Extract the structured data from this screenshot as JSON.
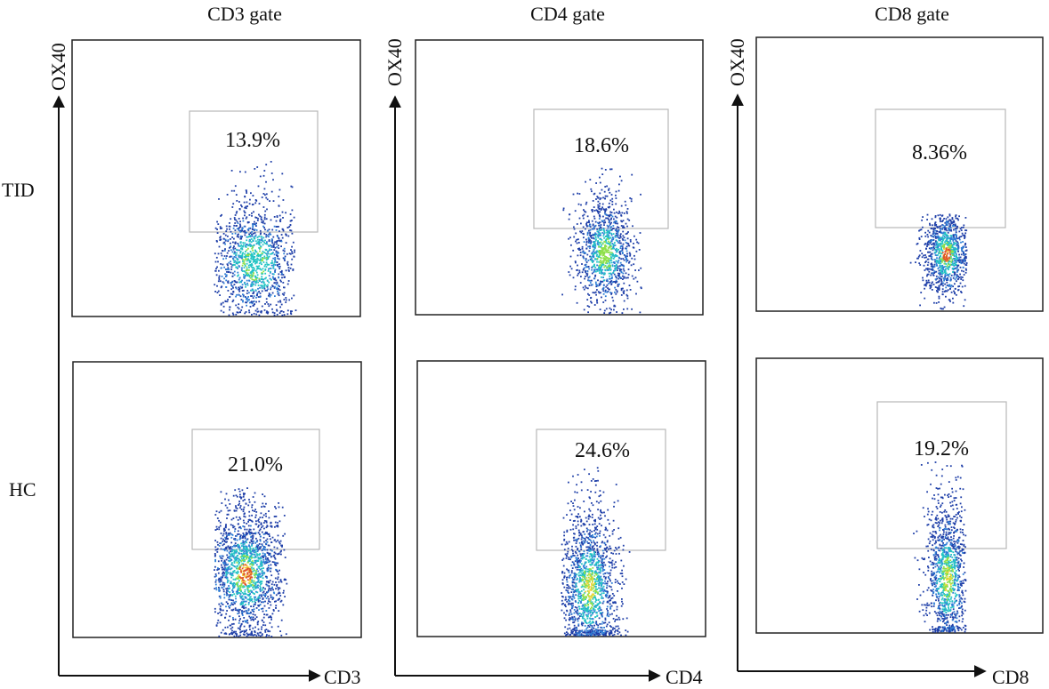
{
  "chart_data": {
    "type": "scatter",
    "columns": [
      {
        "title": "CD3 gate",
        "xlabel": "CD3",
        "ylabel": "OX40"
      },
      {
        "title": "CD4 gate",
        "xlabel": "CD4",
        "ylabel": "OX40"
      },
      {
        "title": "CD8 gate",
        "xlabel": "CD8",
        "ylabel": "OX40"
      }
    ],
    "rows": [
      "TID",
      "HC"
    ],
    "panels": [
      {
        "row": "TID",
        "column": "CD3 gate",
        "gate_percent": "13.9%"
      },
      {
        "row": "TID",
        "column": "CD4 gate",
        "gate_percent": "18.6%"
      },
      {
        "row": "TID",
        "column": "CD8 gate",
        "gate_percent": "8.36%"
      },
      {
        "row": "HC",
        "column": "CD3 gate",
        "gate_percent": "21.0%"
      },
      {
        "row": "HC",
        "column": "CD4 gate",
        "gate_percent": "24.6%"
      },
      {
        "row": "HC",
        "column": "CD8 gate",
        "gate_percent": "19.2%"
      }
    ],
    "density_colors": [
      "#1f3fa8",
      "#2f7fd6",
      "#23c4c4",
      "#8fe04a",
      "#f2d43a",
      "#e0542a"
    ],
    "grid": false
  }
}
